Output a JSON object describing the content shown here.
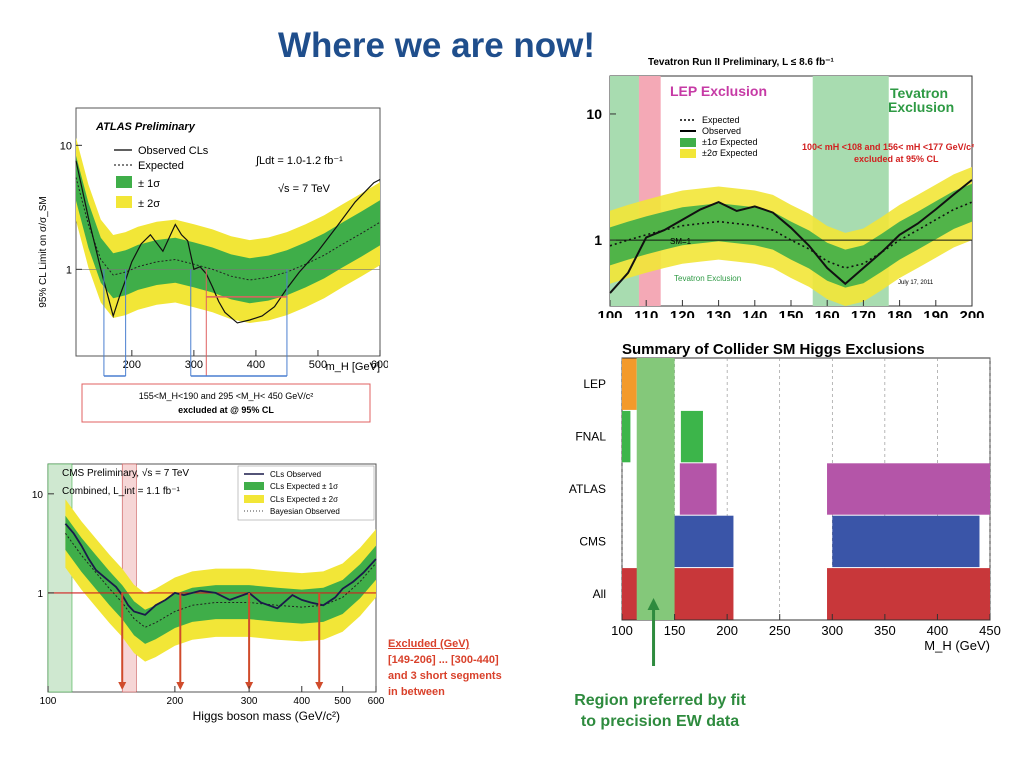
{
  "slide": {
    "title": "Where we are now!"
  },
  "chart_data": [
    {
      "id": "atlas",
      "type": "line",
      "title": "ATLAS Preliminary",
      "ylabel": "95% CL Limit on σ/σ_SM",
      "xlabel": "m_H [GeV]",
      "ylog": true,
      "xlim": [
        110,
        600
      ],
      "ylim": [
        0.2,
        20
      ],
      "x_ticks": [
        "200",
        "300",
        "400",
        "500",
        "600"
      ],
      "y_ticks": [
        "1",
        "10"
      ],
      "legend": [
        "Observed CLs",
        "Expected",
        "± 1σ",
        "± 2σ"
      ],
      "lumi_text": "∫Ldt = 1.0-1.2 fb⁻¹",
      "energy_text": "√s = 7 TeV",
      "series": [
        {
          "name": "Observed CLs",
          "x": [
            110,
            130,
            150,
            170,
            180,
            190,
            200,
            215,
            230,
            250,
            270,
            280,
            290,
            300,
            310,
            320,
            330,
            340,
            350,
            370,
            390,
            410,
            430,
            450,
            470,
            500,
            530,
            560,
            590,
            600
          ],
          "y": [
            7.5,
            2.6,
            1.0,
            0.42,
            0.6,
            0.82,
            1.15,
            1.6,
            1.9,
            1.4,
            2.3,
            1.9,
            1.7,
            1.0,
            1.05,
            0.92,
            0.72,
            0.55,
            0.45,
            0.37,
            0.39,
            0.42,
            0.5,
            0.7,
            0.95,
            1.4,
            2.2,
            3.5,
            5.0,
            5.3
          ]
        },
        {
          "name": "Expected",
          "x": [
            110,
            130,
            150,
            170,
            190,
            210,
            240,
            270,
            300,
            330,
            360,
            390,
            420,
            450,
            480,
            510,
            540,
            570,
            600
          ],
          "y": [
            5.5,
            2.3,
            1.2,
            0.9,
            0.95,
            1.05,
            1.15,
            1.2,
            1.1,
            1.0,
            0.88,
            0.82,
            0.86,
            0.95,
            1.1,
            1.3,
            1.6,
            1.95,
            2.4
          ]
        }
      ],
      "exclusion_text": [
        "155<M_H<190   and   295 <M_H< 450 GeV/c²",
        "excluded at @ 95% CL"
      ]
    },
    {
      "id": "tevatron",
      "type": "line",
      "title": "Tevatron Run II Preliminary, L ≤ 8.6 fb⁻¹",
      "ylog": true,
      "xlim": [
        100,
        200
      ],
      "ylim": [
        0.3,
        20
      ],
      "x_ticks": [
        "100",
        "110",
        "120",
        "130",
        "140",
        "150",
        "160",
        "170",
        "180",
        "190",
        "200"
      ],
      "y_ticks": [
        "1",
        "10"
      ],
      "legend": [
        "Expected",
        "Observed",
        "±1σ Expected",
        "±2σ Expected"
      ],
      "labels": {
        "lep": "LEP Exclusion",
        "tev": "Tevatron Exclusion",
        "ranges": "100< mH <108 and 156< mH <177 GeV/c²",
        "ranges2": "excluded at 95% CL",
        "sm": "SM=1",
        "tev_arrow": "Tevatron Exclusion",
        "date": "July 17, 2011"
      },
      "series": [
        {
          "name": "Observed",
          "x": [
            100,
            105,
            110,
            115,
            120,
            125,
            130,
            135,
            140,
            145,
            150,
            155,
            160,
            165,
            170,
            175,
            180,
            185,
            190,
            195,
            200
          ],
          "y": [
            0.38,
            0.55,
            1.05,
            1.2,
            1.45,
            1.75,
            2.0,
            1.7,
            1.85,
            1.65,
            1.25,
            0.9,
            0.6,
            0.45,
            0.6,
            0.8,
            1.1,
            1.35,
            1.75,
            2.3,
            3.0
          ]
        },
        {
          "name": "Expected",
          "x": [
            100,
            105,
            110,
            115,
            120,
            125,
            130,
            135,
            140,
            145,
            150,
            155,
            160,
            165,
            170,
            175,
            180,
            185,
            190,
            195,
            200
          ],
          "y": [
            0.9,
            1.0,
            1.1,
            1.2,
            1.3,
            1.35,
            1.4,
            1.35,
            1.3,
            1.2,
            1.0,
            0.85,
            0.68,
            0.6,
            0.65,
            0.8,
            1.0,
            1.2,
            1.45,
            1.75,
            2.0
          ]
        }
      ]
    },
    {
      "id": "cms",
      "type": "line",
      "title": "CMS Preliminary, √s = 7 TeV",
      "subtitle": "Combined, L_int = 1.1 fb⁻¹",
      "xlabel": "Higgs boson mass (GeV/c²)",
      "ylog": true,
      "xlog": true,
      "xlim": [
        100,
        600
      ],
      "ylim": [
        0.1,
        20
      ],
      "x_ticks": [
        "100",
        "200",
        "300",
        "400",
        "500",
        "600"
      ],
      "y_ticks": [
        "1",
        "10"
      ],
      "legend": [
        "CLs Observed",
        "CLs Expected ± 1σ",
        "CLs Expected ± 2σ",
        "Bayesian Observed"
      ],
      "series": [
        {
          "name": "CLs Observed",
          "x": [
            110,
            115,
            120,
            125,
            130,
            140,
            145,
            150,
            155,
            160,
            170,
            180,
            190,
            200,
            210,
            230,
            250,
            270,
            300,
            320,
            350,
            380,
            400,
            420,
            450,
            480,
            500,
            530,
            560,
            600
          ],
          "y": [
            5.0,
            4.0,
            3.0,
            2.2,
            1.7,
            1.3,
            1.15,
            0.95,
            0.75,
            0.65,
            0.6,
            0.75,
            0.85,
            1.0,
            0.95,
            1.05,
            1.0,
            0.85,
            1.0,
            0.8,
            0.7,
            0.95,
            0.85,
            0.8,
            0.75,
            0.9,
            1.1,
            1.3,
            1.6,
            2.2
          ]
        },
        {
          "name": "Expected",
          "x": [
            110,
            120,
            130,
            140,
            150,
            160,
            170,
            180,
            200,
            220,
            250,
            300,
            350,
            400,
            450,
            500,
            550,
            600
          ],
          "y": [
            4.0,
            2.4,
            1.6,
            1.1,
            0.8,
            0.55,
            0.45,
            0.5,
            0.65,
            0.75,
            0.8,
            0.8,
            0.75,
            0.72,
            0.75,
            0.9,
            1.3,
            2.0
          ]
        }
      ],
      "excluded_note": {
        "title": "Excluded (GeV)",
        "line1": "[149-206] ... [300-440]",
        "line2": "and 3 short segments",
        "line3": "in between"
      }
    },
    {
      "id": "summary",
      "type": "bar",
      "title": "Summary of Collider SM Higgs Exclusions",
      "xlabel": "M_H (GeV)",
      "xlim": [
        100,
        450
      ],
      "x_ticks": [
        "100",
        "150",
        "200",
        "250",
        "300",
        "350",
        "400",
        "450"
      ],
      "categories": [
        "LEP",
        "FNAL",
        "ATLAS",
        "CMS",
        "All"
      ],
      "ranges": [
        {
          "row": "LEP",
          "from": 100,
          "to": 114,
          "color": "#f39a2b"
        },
        {
          "row": "FNAL",
          "from": 100,
          "to": 108,
          "color": "#3cb54a"
        },
        {
          "row": "FNAL",
          "from": 156,
          "to": 177,
          "color": "#3cb54a"
        },
        {
          "row": "ATLAS",
          "from": 155,
          "to": 190,
          "color": "#b455a8"
        },
        {
          "row": "ATLAS",
          "from": 295,
          "to": 450,
          "color": "#b455a8"
        },
        {
          "row": "CMS",
          "from": 149,
          "to": 206,
          "color": "#3a55a8"
        },
        {
          "row": "CMS",
          "from": 300,
          "to": 440,
          "color": "#3a55a8"
        },
        {
          "row": "All",
          "from": 100,
          "to": 206,
          "color": "#c8373a"
        },
        {
          "row": "All",
          "from": 295,
          "to": 450,
          "color": "#c8373a"
        }
      ],
      "preferred_band": [
        114,
        150
      ],
      "preferred_note": [
        "Region preferred by fit",
        "to precision EW data"
      ]
    }
  ]
}
